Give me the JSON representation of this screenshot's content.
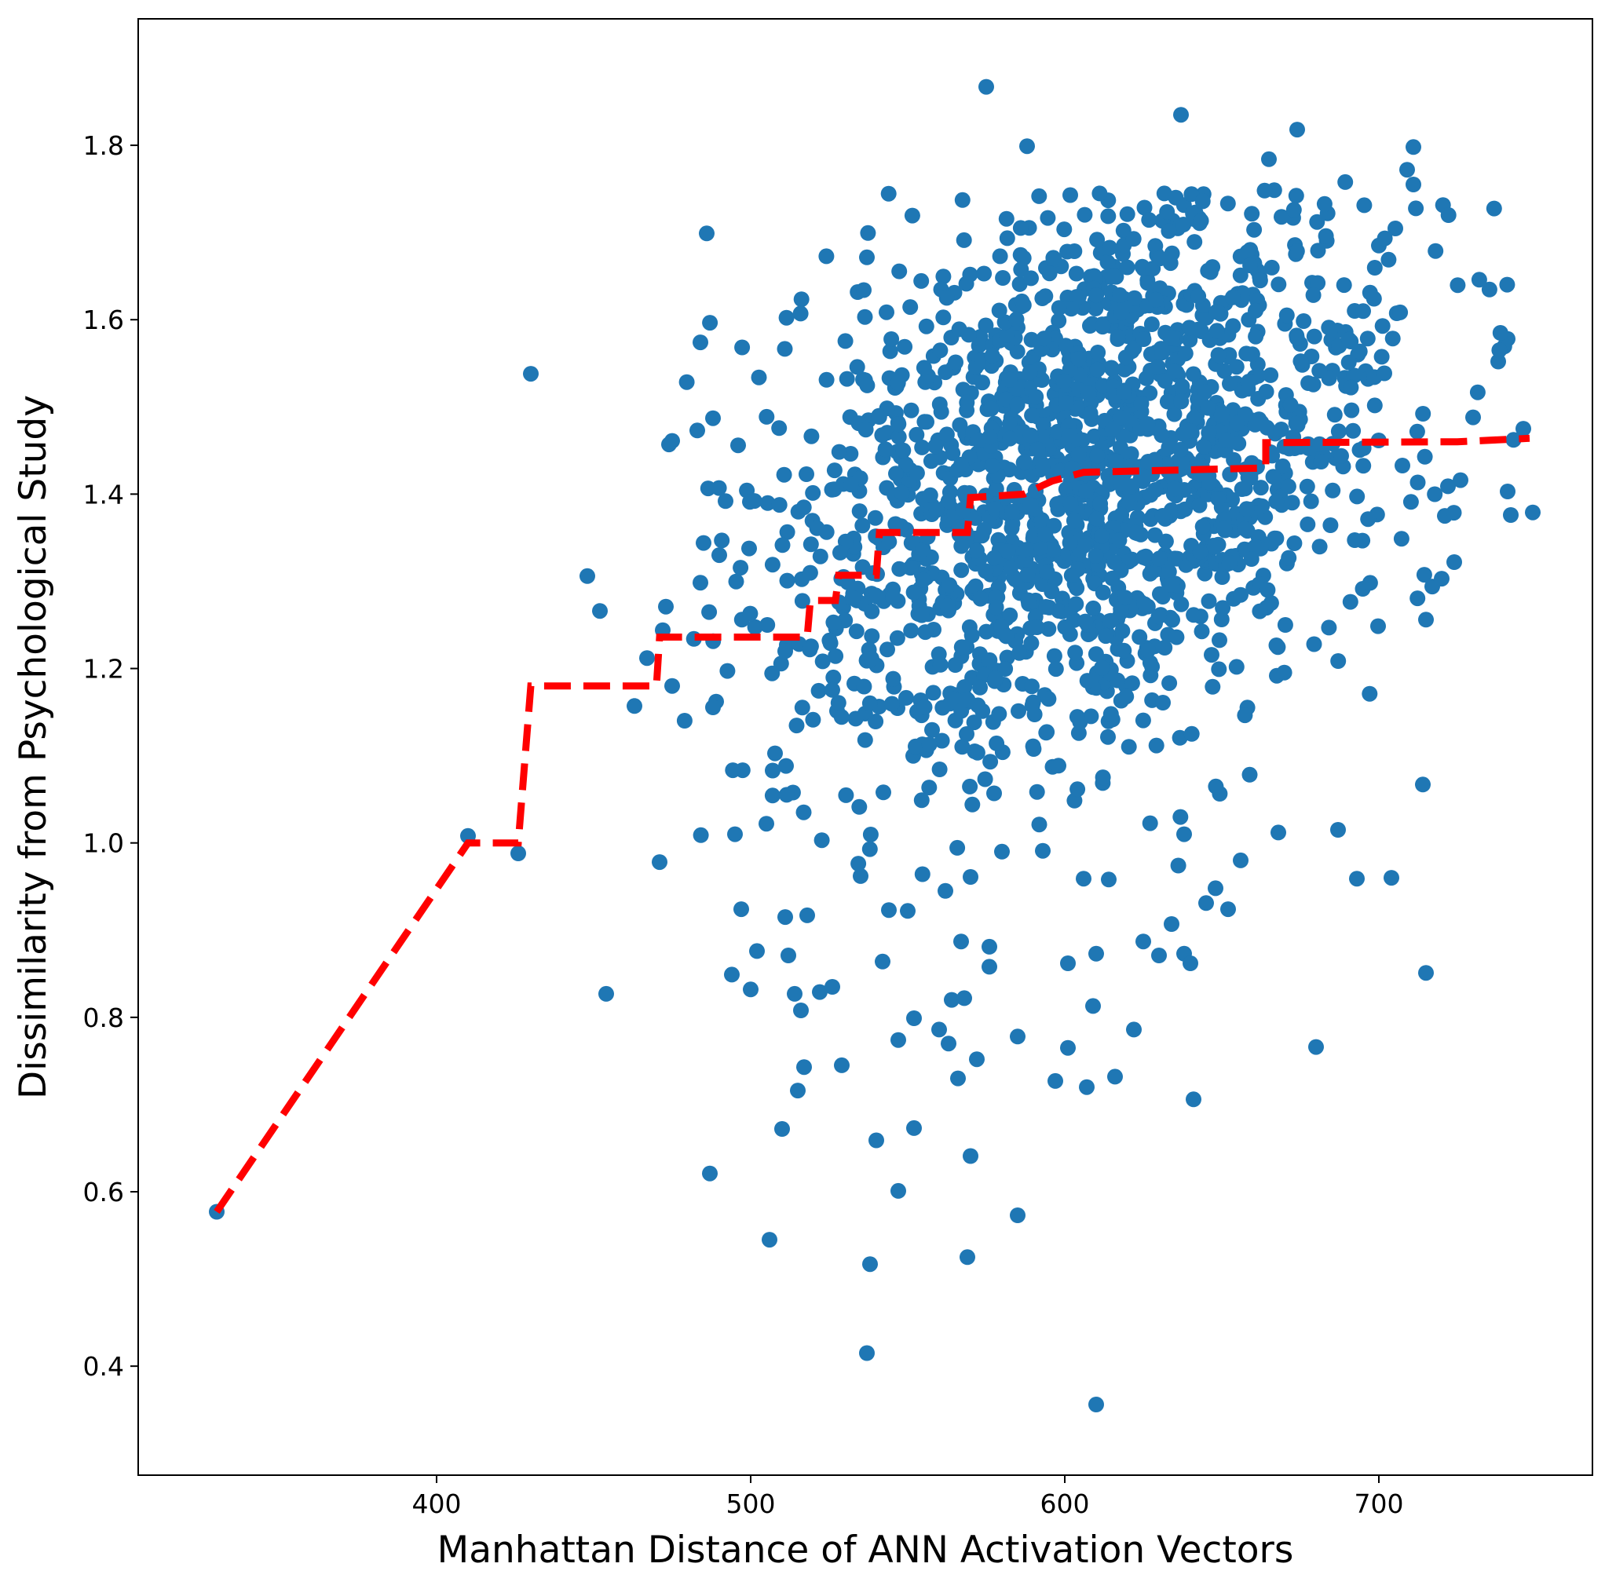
{
  "chart_data": {
    "type": "scatter",
    "title": "",
    "xlabel": "Manhattan Distance of ANN Activation Vectors",
    "ylabel": "Dissimilarity from Psychological Study",
    "xlim": [
      305,
      768
    ],
    "ylim": [
      0.275,
      1.945
    ],
    "xticks": [
      400,
      500,
      600,
      700
    ],
    "yticks": [
      0.4,
      0.6,
      0.8,
      1.0,
      1.2,
      1.4,
      1.6,
      1.8
    ],
    "xtick_labels": [
      "400",
      "500",
      "600",
      "700"
    ],
    "ytick_labels": [
      "0.4",
      "0.6",
      "0.8",
      "1.0",
      "1.2",
      "1.4",
      "1.6",
      "1.8"
    ],
    "grid": false,
    "legend": "none",
    "colors": {
      "points": "#1f77b4",
      "fit_line": "#ff0000"
    },
    "series": [
      {
        "kind": "scatter",
        "marker": "circle",
        "approximate_point_count": 1800,
        "points": [
          [
            330,
            0.577
          ],
          [
            410,
            1.008
          ],
          [
            426,
            0.988
          ],
          [
            430,
            1.538
          ],
          [
            448,
            1.306
          ],
          [
            452,
            1.266
          ],
          [
            454,
            0.827
          ],
          [
            463,
            1.157
          ],
          [
            467,
            1.212
          ],
          [
            471,
            0.978
          ],
          [
            472,
            1.244
          ],
          [
            473,
            1.271
          ],
          [
            474,
            1.457
          ],
          [
            475,
            1.461
          ],
          [
            475,
            1.18
          ],
          [
            483,
            1.473
          ],
          [
            484,
            1.574
          ],
          [
            485,
            1.344
          ],
          [
            486,
            1.699
          ],
          [
            487,
            0.621
          ],
          [
            488,
            1.487
          ],
          [
            489,
            1.162
          ],
          [
            490,
            1.33
          ],
          [
            492,
            1.392
          ],
          [
            494,
            0.849
          ],
          [
            495,
            1.01
          ],
          [
            496,
            1.456
          ],
          [
            497,
            0.924
          ],
          [
            500,
            0.832
          ],
          [
            502,
            0.876
          ],
          [
            505,
            1.022
          ],
          [
            506,
            0.545
          ],
          [
            507,
            1.083
          ],
          [
            510,
            0.672
          ],
          [
            511,
            0.915
          ],
          [
            512,
            0.871
          ],
          [
            514,
            0.827
          ],
          [
            515,
            0.716
          ],
          [
            516,
            0.808
          ],
          [
            517,
            0.743
          ],
          [
            518,
            0.917
          ],
          [
            522,
            0.829
          ],
          [
            526,
            0.835
          ],
          [
            529,
            0.745
          ],
          [
            535,
            0.962
          ],
          [
            537,
            0.415
          ],
          [
            538,
            0.517
          ],
          [
            540,
            0.659
          ],
          [
            542,
            0.864
          ],
          [
            544,
            0.923
          ],
          [
            547,
            0.601
          ],
          [
            547,
            0.774
          ],
          [
            550,
            0.922
          ],
          [
            552,
            0.799
          ],
          [
            552,
            0.673
          ],
          [
            560,
            0.786
          ],
          [
            562,
            0.945
          ],
          [
            563,
            0.77
          ],
          [
            564,
            0.82
          ],
          [
            566,
            0.73
          ],
          [
            567,
            0.887
          ],
          [
            568,
            0.822
          ],
          [
            569,
            0.525
          ],
          [
            570,
            0.641
          ],
          [
            570,
            0.961
          ],
          [
            572,
            0.752
          ],
          [
            575,
            1.867
          ],
          [
            576,
            0.858
          ],
          [
            576,
            0.881
          ],
          [
            580,
            0.99
          ],
          [
            585,
            0.778
          ],
          [
            585,
            0.573
          ],
          [
            588,
            1.799
          ],
          [
            593,
            0.991
          ],
          [
            597,
            0.727
          ],
          [
            601,
            0.765
          ],
          [
            601,
            0.862
          ],
          [
            606,
            0.959
          ],
          [
            607,
            0.72
          ],
          [
            609,
            0.813
          ],
          [
            610,
            0.873
          ],
          [
            610,
            0.356
          ],
          [
            614,
            0.958
          ],
          [
            616,
            0.732
          ],
          [
            622,
            0.786
          ],
          [
            625,
            0.887
          ],
          [
            630,
            0.871
          ],
          [
            634,
            0.907
          ],
          [
            638,
            1.01
          ],
          [
            638,
            0.873
          ],
          [
            637,
            1.835
          ],
          [
            640,
            0.862
          ],
          [
            641,
            0.706
          ],
          [
            645,
            0.931
          ],
          [
            648,
            0.948
          ],
          [
            652,
            0.924
          ],
          [
            656,
            0.98
          ],
          [
            665,
            1.784
          ],
          [
            668,
            1.012
          ],
          [
            674,
            1.818
          ],
          [
            680,
            0.766
          ],
          [
            687,
            1.015
          ],
          [
            693,
            0.959
          ],
          [
            700,
            1.685
          ],
          [
            704,
            0.96
          ],
          [
            709,
            1.772
          ],
          [
            711,
            1.798
          ],
          [
            711,
            1.755
          ],
          [
            714,
            1.067
          ],
          [
            715,
            0.851
          ],
          [
            715,
            1.256
          ],
          [
            717,
            1.294
          ],
          [
            720,
            1.303
          ],
          [
            721,
            1.375
          ],
          [
            722,
            1.409
          ],
          [
            724,
            1.322
          ],
          [
            726,
            1.416
          ],
          [
            730,
            1.488
          ],
          [
            738,
            1.552
          ],
          [
            741,
            1.578
          ],
          [
            741,
            1.403
          ],
          [
            742,
            1.376
          ],
          [
            746,
            1.475
          ],
          [
            749,
            1.379
          ]
        ]
      },
      {
        "kind": "line",
        "style": "dashed",
        "points": [
          [
            330,
            0.577
          ],
          [
            410,
            1.0
          ],
          [
            426,
            1.0
          ],
          [
            430,
            1.18
          ],
          [
            470,
            1.18
          ],
          [
            471,
            1.236
          ],
          [
            518,
            1.236
          ],
          [
            519,
            1.278
          ],
          [
            527,
            1.278
          ],
          [
            528,
            1.307
          ],
          [
            540,
            1.307
          ],
          [
            541,
            1.356
          ],
          [
            569,
            1.356
          ],
          [
            570,
            1.396
          ],
          [
            587,
            1.4
          ],
          [
            596,
            1.415
          ],
          [
            606,
            1.425
          ],
          [
            664,
            1.43
          ],
          [
            664,
            1.459
          ],
          [
            725,
            1.46
          ],
          [
            748,
            1.464
          ]
        ]
      }
    ]
  }
}
